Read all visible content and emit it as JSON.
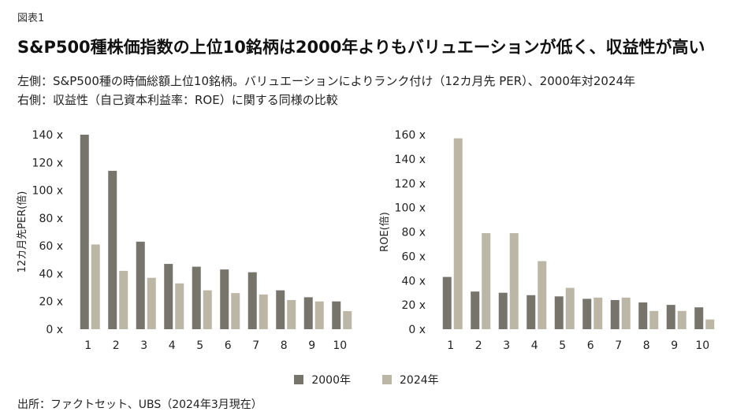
{
  "figure_label": "図表1",
  "title": "S&P500種株価指数の上位10銘柄は2000年よりもバリュエーションが低く、収益性が高い",
  "subtitle_lines": [
    "左側：S&P500種の時価総額上位10銘柄。バリュエーションによりランク付け（12カ月先 PER）、2000年対2024年",
    "右側：収益性（自己資本利益率：ROE）に関する同様の比較"
  ],
  "colors": {
    "series_2000": "#77746c",
    "series_2024": "#bcb6a6"
  },
  "legend": {
    "series_2000": "2000年",
    "series_2024": "2024年"
  },
  "source": "出所：ファクトセット、UBS（2024年3月現在）",
  "chart_data": [
    {
      "type": "bar",
      "ylabel": "12カ月先PER(倍)",
      "ylim": [
        0,
        140
      ],
      "yticks": [
        0,
        20,
        40,
        60,
        80,
        100,
        120,
        140
      ],
      "ytick_labels": [
        "0 x",
        "20 x",
        "40 x",
        "60 x",
        "80 x",
        "100 x",
        "120 x",
        "140 x"
      ],
      "categories": [
        "1",
        "2",
        "3",
        "4",
        "5",
        "6",
        "7",
        "8",
        "9",
        "10"
      ],
      "series": [
        {
          "name": "2000年",
          "values": [
            140,
            114,
            63,
            47,
            45,
            43,
            41,
            28,
            23,
            20
          ]
        },
        {
          "name": "2024年",
          "values": [
            61,
            42,
            37,
            33,
            28,
            26,
            25,
            21,
            20,
            13
          ]
        }
      ]
    },
    {
      "type": "bar",
      "ylabel": "ROE(倍)",
      "ylim": [
        0,
        160
      ],
      "yticks": [
        0,
        20,
        40,
        60,
        80,
        100,
        120,
        140,
        160
      ],
      "ytick_labels": [
        "0 x",
        "20 x",
        "40 x",
        "60 x",
        "80 x",
        "100 x",
        "120 x",
        "140 x",
        "160 x"
      ],
      "categories": [
        "1",
        "2",
        "3",
        "4",
        "5",
        "6",
        "7",
        "8",
        "9",
        "10"
      ],
      "series": [
        {
          "name": "2000年",
          "values": [
            43,
            31,
            30,
            28,
            27,
            25,
            24,
            22,
            20,
            18
          ]
        },
        {
          "name": "2024年",
          "values": [
            157,
            79,
            79,
            56,
            34,
            26,
            26,
            15,
            15,
            8
          ]
        }
      ]
    }
  ]
}
